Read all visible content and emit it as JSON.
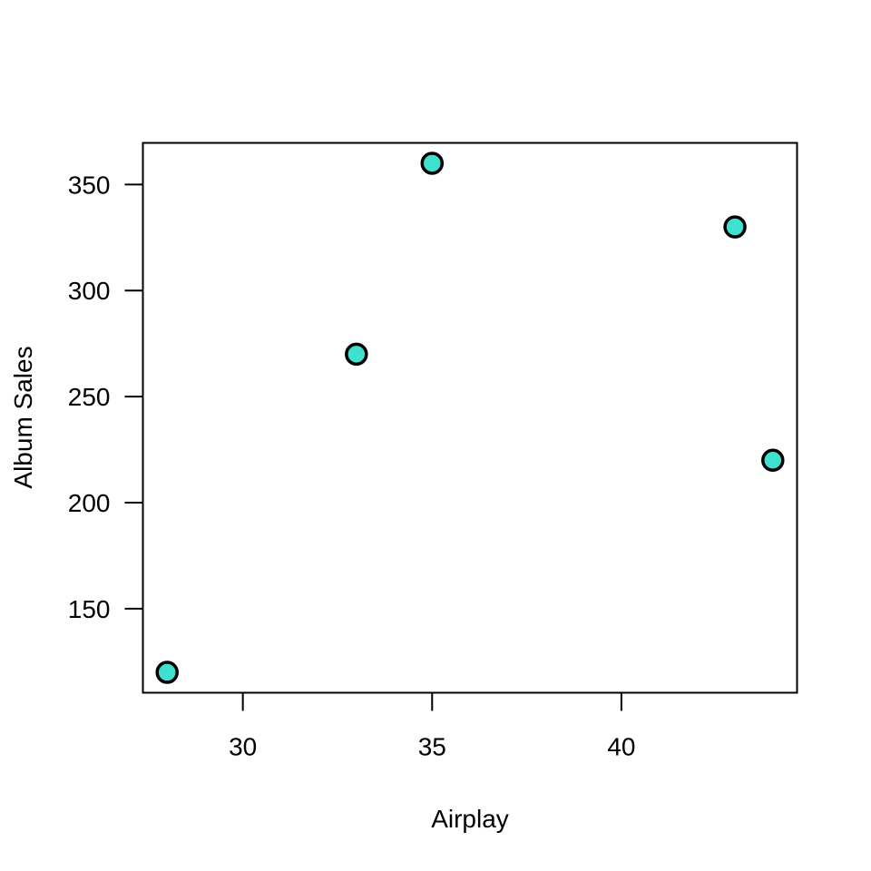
{
  "chart_data": {
    "type": "scatter",
    "title": "",
    "xlabel": "Airplay",
    "ylabel": "Album Sales",
    "points": [
      {
        "x": 28,
        "y": 120
      },
      {
        "x": 33,
        "y": 270
      },
      {
        "x": 35,
        "y": 360
      },
      {
        "x": 43,
        "y": 330
      },
      {
        "x": 44,
        "y": 220
      }
    ],
    "xlim": [
      27.36,
      44.64
    ],
    "ylim": [
      110.4,
      369.6
    ],
    "x_ticks": [
      30,
      35,
      40
    ],
    "y_ticks": [
      150,
      200,
      250,
      300,
      350
    ],
    "grid": false,
    "legend": "none",
    "point_fill": "#40E0D0",
    "point_stroke": "#000000"
  }
}
